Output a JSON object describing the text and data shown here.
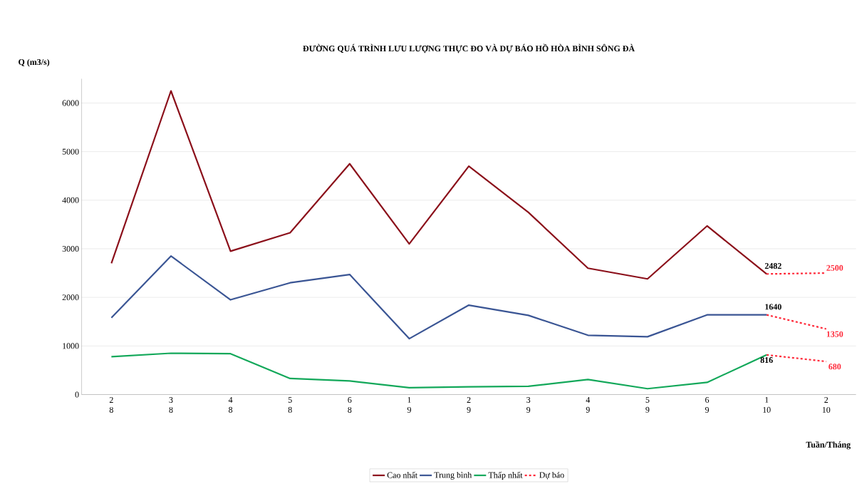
{
  "chart_data": {
    "type": "line",
    "title": "ĐƯỜNG QUÁ TRÌNH LƯU LƯỢNG THỰC ĐO VÀ DỰ BÁO HỒ HÒA BÌNH SÔNG ĐÀ",
    "ylabel": "Q (m3/s)",
    "xlabel": "Tuần/Tháng",
    "categories": [
      "2 8",
      "3 8",
      "4 8",
      "5 8",
      "6 8",
      "1 9",
      "2 9",
      "3 9",
      "4 9",
      "5 9",
      "6 9",
      "1 10",
      "2 10"
    ],
    "series": [
      {
        "name": "Cao nhất",
        "color": "#8b0f1a",
        "values": [
          2700,
          6250,
          2950,
          3330,
          4750,
          3100,
          4700,
          3750,
          2600,
          2380,
          3470,
          2482,
          null
        ],
        "value_labels": [
          null,
          null,
          null,
          null,
          null,
          null,
          null,
          null,
          null,
          null,
          null,
          "2482",
          null
        ]
      },
      {
        "name": "Trung bình",
        "color": "#3a5594",
        "values": [
          1580,
          2850,
          1950,
          2300,
          2470,
          1150,
          1840,
          1630,
          1220,
          1190,
          1640,
          1640,
          null
        ],
        "value_labels": [
          null,
          null,
          null,
          null,
          null,
          null,
          null,
          null,
          null,
          null,
          null,
          "1640",
          null
        ]
      },
      {
        "name": "Thấp nhất",
        "color": "#13a85a",
        "values": [
          780,
          850,
          840,
          330,
          280,
          140,
          160,
          170,
          310,
          120,
          250,
          816,
          null
        ],
        "value_labels": [
          null,
          null,
          null,
          null,
          null,
          null,
          null,
          null,
          null,
          null,
          null,
          "816",
          null
        ]
      },
      {
        "name": "Dự báo",
        "color": "#ff2a3a",
        "line_style": "dashed",
        "values": [
          null,
          null,
          null,
          null,
          null,
          null,
          null,
          null,
          null,
          null,
          null,
          2482,
          2500
        ],
        "value_labels": [
          null,
          null,
          null,
          null,
          null,
          null,
          null,
          null,
          null,
          null,
          null,
          null,
          "2500"
        ]
      },
      {
        "color": "#ff2a3a",
        "line_style": "dashed",
        "values": [
          null,
          null,
          null,
          null,
          null,
          null,
          null,
          null,
          null,
          null,
          null,
          1640,
          1350
        ],
        "value_labels": [
          null,
          null,
          null,
          null,
          null,
          null,
          null,
          null,
          null,
          null,
          null,
          null,
          "1350"
        ]
      },
      {
        "color": "#ff2a3a",
        "line_style": "dashed",
        "values": [
          null,
          null,
          null,
          null,
          null,
          null,
          null,
          null,
          null,
          null,
          null,
          816,
          680
        ],
        "value_labels": [
          null,
          null,
          null,
          null,
          null,
          null,
          null,
          null,
          null,
          null,
          null,
          null,
          "680"
        ]
      }
    ],
    "ylim": [
      0,
      6500
    ],
    "yticks": [
      0,
      1000,
      2000,
      3000,
      4000,
      5000,
      6000
    ],
    "grid": "y",
    "legend": "bottom",
    "line_style": "solid",
    "marker": "none"
  }
}
